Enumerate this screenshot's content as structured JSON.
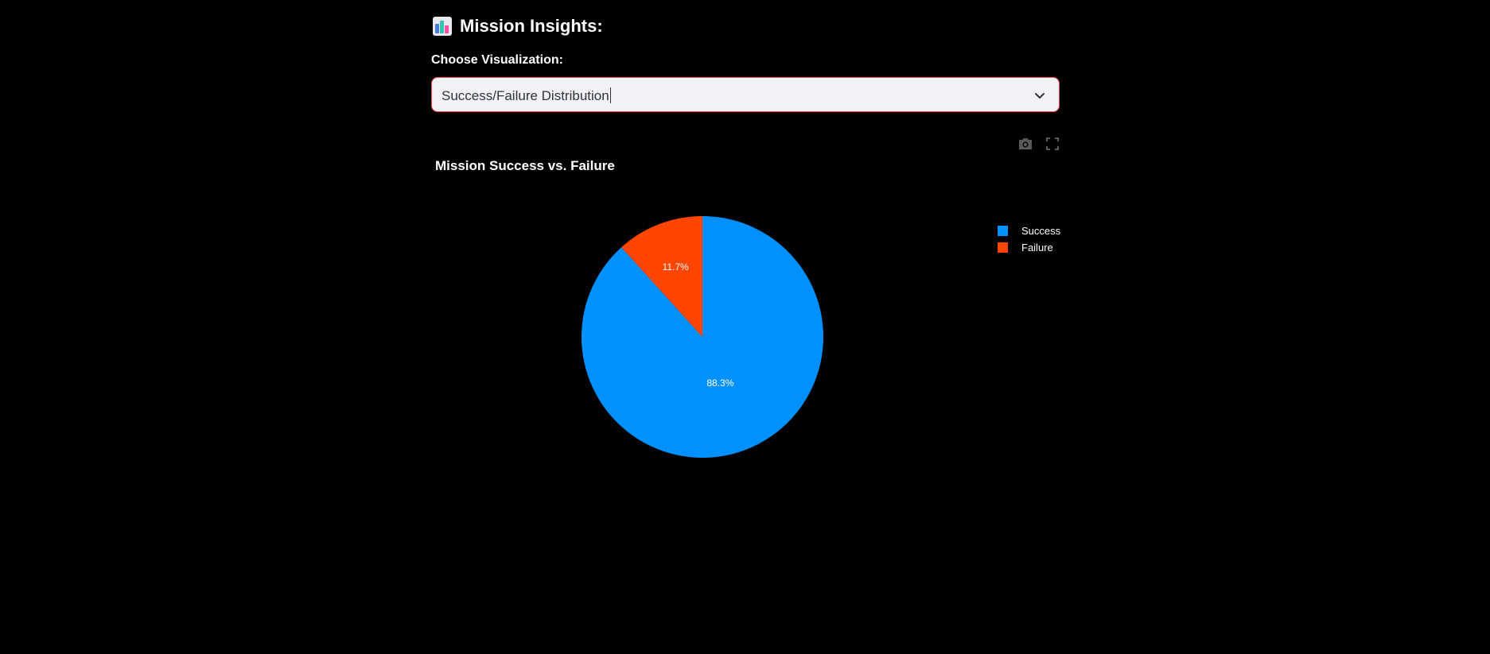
{
  "header": {
    "title": "Mission Insights:",
    "icon": "bar-chart-icon"
  },
  "visualization_select": {
    "label": "Choose Visualization:",
    "value": "Success/Failure Distribution"
  },
  "toolbar": {
    "icons": [
      "camera-icon",
      "fullscreen-icon"
    ]
  },
  "chart_data": {
    "type": "pie",
    "title": "Mission Success vs. Failure",
    "categories": [
      "Success",
      "Failure"
    ],
    "values": [
      88.3,
      11.7
    ],
    "labels": [
      "88.3%",
      "11.7%"
    ],
    "colors": [
      "#0091ff",
      "#ff4500"
    ],
    "legend_position": "top-right"
  }
}
